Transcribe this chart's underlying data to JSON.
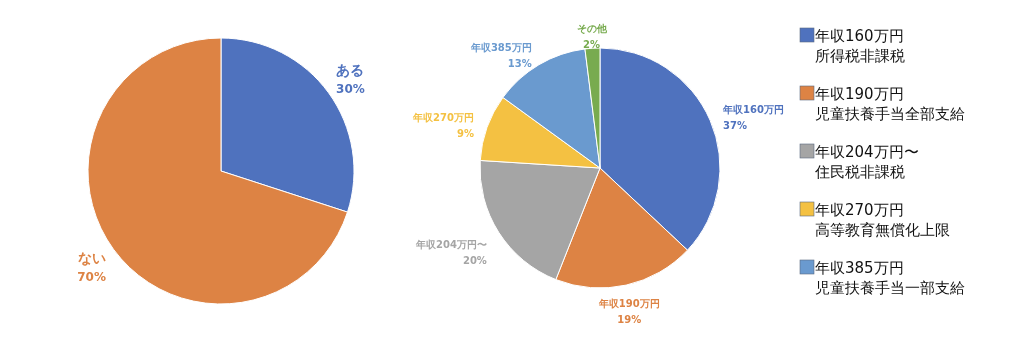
{
  "chart_data": [
    {
      "type": "pie",
      "categories": [
        "ある",
        "ない"
      ],
      "values": [
        30,
        70
      ],
      "colors": [
        "#4f72be",
        "#dd8344"
      ],
      "value_labels": [
        "30%",
        "70%"
      ],
      "legend": false
    },
    {
      "type": "pie",
      "categories": [
        "年収160万円",
        "年収190万円",
        "年収204万円〜",
        "年収270万円",
        "年収385万円",
        "その他"
      ],
      "values": [
        37,
        19,
        20,
        9,
        13,
        2
      ],
      "colors": [
        "#4f72be",
        "#dd8344",
        "#a5a5a5",
        "#f4c142",
        "#6a9acf",
        "#78ab4f"
      ],
      "value_labels": [
        "37%",
        "19%",
        "20%",
        "9%",
        "13%",
        "2%"
      ],
      "legend": "right",
      "annotations": [
        "所得税非課税",
        "児童扶養手当全部支給",
        "住民税非課税",
        "高等教育無償化上限",
        "児童扶養手当一部支給"
      ]
    }
  ]
}
